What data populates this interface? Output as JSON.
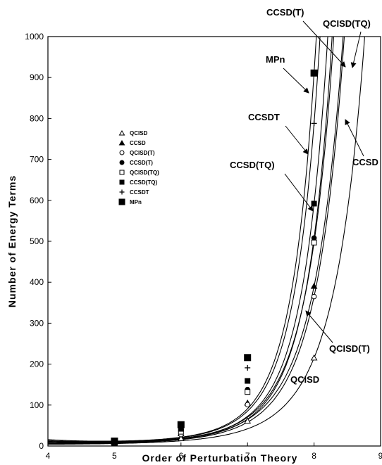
{
  "chart_data": {
    "type": "line",
    "title": "",
    "xlabel": "Order of Perturbation Theory",
    "ylabel": "Number of Energy Terms",
    "xlim": [
      4,
      9
    ],
    "ylim": [
      0,
      1000
    ],
    "x_ticks": [
      "4",
      "5",
      "6",
      "7",
      "8",
      "9"
    ],
    "y_ticks": [
      "0",
      "100",
      "200",
      "300",
      "400",
      "500",
      "600",
      "700",
      "800",
      "900",
      "1000"
    ],
    "grid": false,
    "legend_position": "upper-left",
    "series": [
      {
        "name": "QCISD",
        "marker": "open-triangle",
        "x": [
          5,
          6,
          7,
          8
        ],
        "y": [
          6,
          18,
          61,
          215
        ],
        "curve_k": 0.22
      },
      {
        "name": "CCSD",
        "marker": "filled-triangle",
        "x": [
          5,
          6,
          7,
          8
        ],
        "y": [
          8,
          30,
          105,
          390
        ],
        "curve_k": 0.25
      },
      {
        "name": "QCISD(T)",
        "marker": "open-circle",
        "x": [
          5,
          6,
          7,
          8
        ],
        "y": [
          7,
          28,
          101,
          365
        ],
        "curve_k": 0.26
      },
      {
        "name": "CCSD(T)",
        "marker": "filled-circle",
        "x": [
          5,
          6,
          7,
          8
        ],
        "y": [
          9,
          37,
          138,
          508
        ],
        "curve_k": 0.35
      },
      {
        "name": "QCISD(TQ)",
        "marker": "open-square",
        "x": [
          5,
          6,
          7,
          8
        ],
        "y": [
          9,
          35,
          132,
          497
        ],
        "curve_k": 0.31
      },
      {
        "name": "CCSD(TQ)",
        "marker": "filled-square",
        "x": [
          5,
          6,
          7,
          8
        ],
        "y": [
          10,
          42,
          159,
          592
        ],
        "curve_k": 0.37
      },
      {
        "name": "CCSDT",
        "marker": "plus",
        "x": [
          5,
          6,
          7,
          8
        ],
        "y": [
          11,
          48,
          191,
          788
        ],
        "curve_k": 0.4
      },
      {
        "name": "MPn",
        "marker": "big-filled-square",
        "x": [
          5,
          6,
          7,
          8
        ],
        "y": [
          12,
          52,
          216,
          911
        ],
        "curve_k": 0.43
      }
    ],
    "annotations": [
      {
        "text": "CCSD(T)",
        "target_series": "CCSD(T)"
      },
      {
        "text": "QCISD(TQ)",
        "target_series": "QCISD(TQ)"
      },
      {
        "text": "MPn",
        "target_series": "MPn"
      },
      {
        "text": "CCSDT",
        "target_series": "CCSDT"
      },
      {
        "text": "CCSD(TQ)",
        "target_series": "CCSD(TQ)"
      },
      {
        "text": "CCSD",
        "target_series": "CCSD"
      },
      {
        "text": "QCISD(T)",
        "target_series": "QCISD(T)"
      },
      {
        "text": "QCISD",
        "target_series": "QCISD"
      }
    ]
  }
}
